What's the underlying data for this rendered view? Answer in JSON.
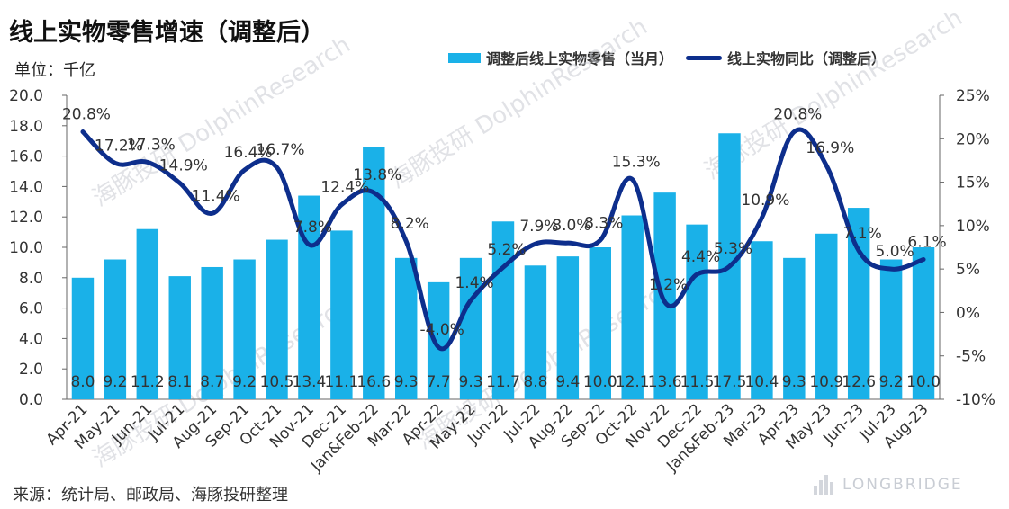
{
  "title": "线上实物零售增速（调整后）",
  "unit": "单位：千亿",
  "source": "来源：统计局、邮政局、海豚投研整理",
  "watermark": "海豚投研 DolphinResearch",
  "logo_text": "LONGBRIDGE",
  "colors": {
    "bar": "#1AB1E8",
    "line": "#0D2E8C"
  },
  "chart_data": {
    "type": "bar+line",
    "categories": [
      "Apr-21",
      "May-21",
      "Jun-21",
      "Jul-21",
      "Aug-21",
      "Sep-21",
      "Oct-21",
      "Nov-21",
      "Dec-21",
      "Jan&Feb-22",
      "Mar-22",
      "Apr-22",
      "May-22",
      "Jun-22",
      "Jul-22",
      "Aug-22",
      "Sep-22",
      "Oct-22",
      "Nov-22",
      "Dec-22",
      "Jan&Feb-23",
      "Mar-23",
      "Apr-23",
      "May-23",
      "Jun-23",
      "Jul-23",
      "Aug-23"
    ],
    "series": [
      {
        "name": "调整后线上实物零售（当月）",
        "type": "bar",
        "axis": "left",
        "values": [
          8.0,
          9.2,
          11.2,
          8.1,
          8.7,
          9.2,
          10.5,
          13.4,
          11.1,
          16.6,
          9.3,
          7.7,
          9.3,
          11.7,
          8.8,
          9.4,
          10.0,
          12.1,
          13.6,
          11.5,
          17.5,
          10.4,
          9.3,
          10.9,
          12.6,
          9.2,
          10.0
        ],
        "labels": [
          "8.0",
          "9.2",
          "11.2",
          "8.1",
          "8.7",
          "9.2",
          "10.5",
          "13.4",
          "11.1",
          "16.6",
          "9.3",
          "7.7",
          "9.3",
          "11.7",
          "8.8",
          "9.4",
          "10.0",
          "12.1",
          "13.6",
          "11.5",
          "17.5",
          "10.4",
          "9.3",
          "10.9",
          "12.6",
          "9.2",
          "10.0"
        ]
      },
      {
        "name": "线上实物同比（调整后）",
        "type": "line",
        "axis": "right",
        "values": [
          20.8,
          17.2,
          17.3,
          14.9,
          11.4,
          16.4,
          16.7,
          7.8,
          12.4,
          13.8,
          8.2,
          -4.0,
          1.4,
          5.2,
          7.9,
          8.0,
          8.3,
          15.3,
          1.2,
          4.4,
          5.3,
          10.9,
          20.8,
          16.9,
          7.1,
          5.0,
          6.1
        ],
        "labels": [
          "20.8%",
          "17.2%",
          "17.3%",
          "14.9%",
          "11.4%",
          "16.4%",
          "16.7%",
          "7.8%",
          "12.4%",
          "13.8%",
          "8.2%",
          "-4.0%",
          "1.4%",
          "5.2%",
          "7.9%",
          "8.0%",
          "8.3%",
          "15.3%",
          "1.2%",
          "4.4%",
          "5.3%",
          "10.9%",
          "20.8%",
          "16.9%",
          "7.1%",
          "5.0%",
          "6.1%"
        ]
      }
    ],
    "y_left": {
      "min": 0,
      "max": 20,
      "step": 2,
      "tick_labels": [
        "0.0",
        "2.0",
        "4.0",
        "6.0",
        "8.0",
        "10.0",
        "12.0",
        "14.0",
        "16.0",
        "18.0",
        "20.0"
      ]
    },
    "y_right": {
      "min": -10,
      "max": 25,
      "step": 5,
      "tick_labels": [
        "-10%",
        "-5%",
        "0%",
        "5%",
        "10%",
        "15%",
        "20%",
        "25%"
      ]
    },
    "grid": false,
    "legend_position": "top-right"
  }
}
